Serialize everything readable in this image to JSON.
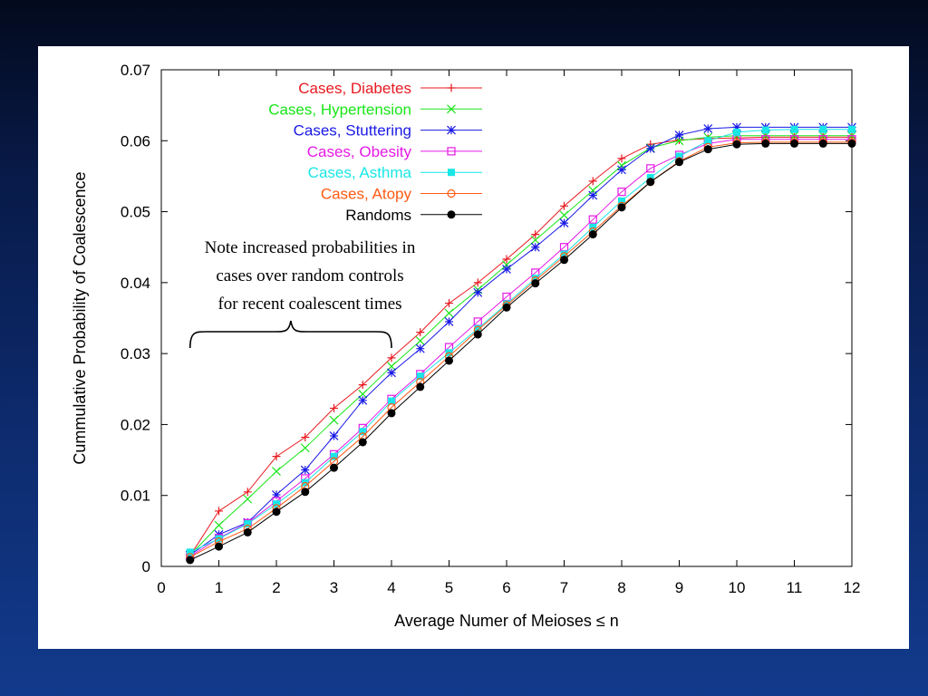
{
  "colors": {
    "slide_background_top": "#030a1e",
    "slide_background_bottom": "#123a8c",
    "panel_background": "#ffffff"
  },
  "chart_data": {
    "type": "line",
    "title": "",
    "xlabel": "Average Numer of Meioses ≤ n",
    "ylabel": "Cummulative Probability of Coalescence",
    "xlim": [
      0,
      12
    ],
    "ylim": [
      0,
      0.07
    ],
    "xticks": [
      "0",
      "1",
      "2",
      "3",
      "4",
      "5",
      "6",
      "7",
      "8",
      "9",
      "10",
      "11",
      "12"
    ],
    "yticks": [
      "0",
      "0.01",
      "0.02",
      "0.03",
      "0.04",
      "0.05",
      "0.06",
      "0.07"
    ],
    "grid": false,
    "legend_position": "top-left",
    "x": [
      0.5,
      1,
      1.5,
      2,
      2.5,
      3,
      3.5,
      4,
      4.5,
      5,
      5.5,
      6,
      6.5,
      7,
      7.5,
      8,
      8.5,
      9,
      9.5,
      10,
      10.5,
      11,
      11.5,
      12
    ],
    "series": [
      {
        "name": "Cases, Diabetes",
        "color": "#e8191f",
        "marker": "plus",
        "values": [
          0.0015,
          0.0078,
          0.0105,
          0.0155,
          0.0182,
          0.0223,
          0.0256,
          0.0294,
          0.033,
          0.0371,
          0.04,
          0.0433,
          0.0468,
          0.0508,
          0.0543,
          0.0575,
          0.0595,
          0.0601,
          0.0603,
          0.0604,
          0.0605,
          0.0605,
          0.0605,
          0.0605
        ]
      },
      {
        "name": "Cases, Hypertension",
        "color": "#19e619",
        "marker": "x",
        "values": [
          0.0016,
          0.0058,
          0.0095,
          0.0134,
          0.0167,
          0.0206,
          0.0243,
          0.0282,
          0.0318,
          0.0357,
          0.039,
          0.0425,
          0.046,
          0.0495,
          0.053,
          0.0565,
          0.059,
          0.06,
          0.0605,
          0.0607,
          0.0607,
          0.0607,
          0.0607,
          0.0607
        ]
      },
      {
        "name": "Cases, Stuttering",
        "color": "#1a1ae6",
        "marker": "star",
        "values": [
          0.0016,
          0.0045,
          0.0062,
          0.0101,
          0.0136,
          0.0184,
          0.0234,
          0.0273,
          0.0307,
          0.0345,
          0.0386,
          0.0419,
          0.045,
          0.0484,
          0.0523,
          0.0559,
          0.0589,
          0.0608,
          0.0617,
          0.0619,
          0.0619,
          0.0619,
          0.0619,
          0.0619
        ]
      },
      {
        "name": "Cases, Obesity",
        "color": "#e619e6",
        "marker": "square-open",
        "values": [
          0.0014,
          0.004,
          0.0061,
          0.0092,
          0.0124,
          0.0158,
          0.0195,
          0.0236,
          0.0271,
          0.0309,
          0.0345,
          0.038,
          0.0414,
          0.045,
          0.0489,
          0.0528,
          0.0561,
          0.058,
          0.0596,
          0.0602,
          0.0602,
          0.0602,
          0.0602,
          0.0602
        ]
      },
      {
        "name": "Cases, Asthma",
        "color": "#19e6e6",
        "marker": "square-filled",
        "values": [
          0.002,
          0.0039,
          0.006,
          0.0088,
          0.0118,
          0.0155,
          0.019,
          0.0233,
          0.0268,
          0.0301,
          0.0335,
          0.037,
          0.0406,
          0.044,
          0.0478,
          0.0515,
          0.0548,
          0.0578,
          0.06,
          0.0612,
          0.0615,
          0.0616,
          0.0616,
          0.0616
        ]
      },
      {
        "name": "Cases, Atopy",
        "color": "#ff5a14",
        "marker": "circle-open",
        "values": [
          0.0013,
          0.0035,
          0.0053,
          0.0082,
          0.0113,
          0.0148,
          0.0183,
          0.0224,
          0.026,
          0.0296,
          0.0333,
          0.0368,
          0.0403,
          0.0437,
          0.0472,
          0.0508,
          0.0542,
          0.0571,
          0.0591,
          0.0597,
          0.0598,
          0.0598,
          0.0598,
          0.0598
        ]
      },
      {
        "name": "Randoms",
        "color": "#000000",
        "marker": "circle-filled",
        "values": [
          0.0009,
          0.0028,
          0.0048,
          0.0077,
          0.0105,
          0.0139,
          0.0175,
          0.0216,
          0.0253,
          0.029,
          0.0327,
          0.0365,
          0.0399,
          0.0432,
          0.0468,
          0.0506,
          0.0542,
          0.057,
          0.0588,
          0.0595,
          0.0596,
          0.0596,
          0.0596,
          0.0596
        ]
      }
    ],
    "annotation": {
      "lines": [
        "Note increased probabilities in",
        "cases over random controls",
        "for recent coalescent times"
      ],
      "brace_x_range": [
        0.5,
        4
      ]
    }
  }
}
